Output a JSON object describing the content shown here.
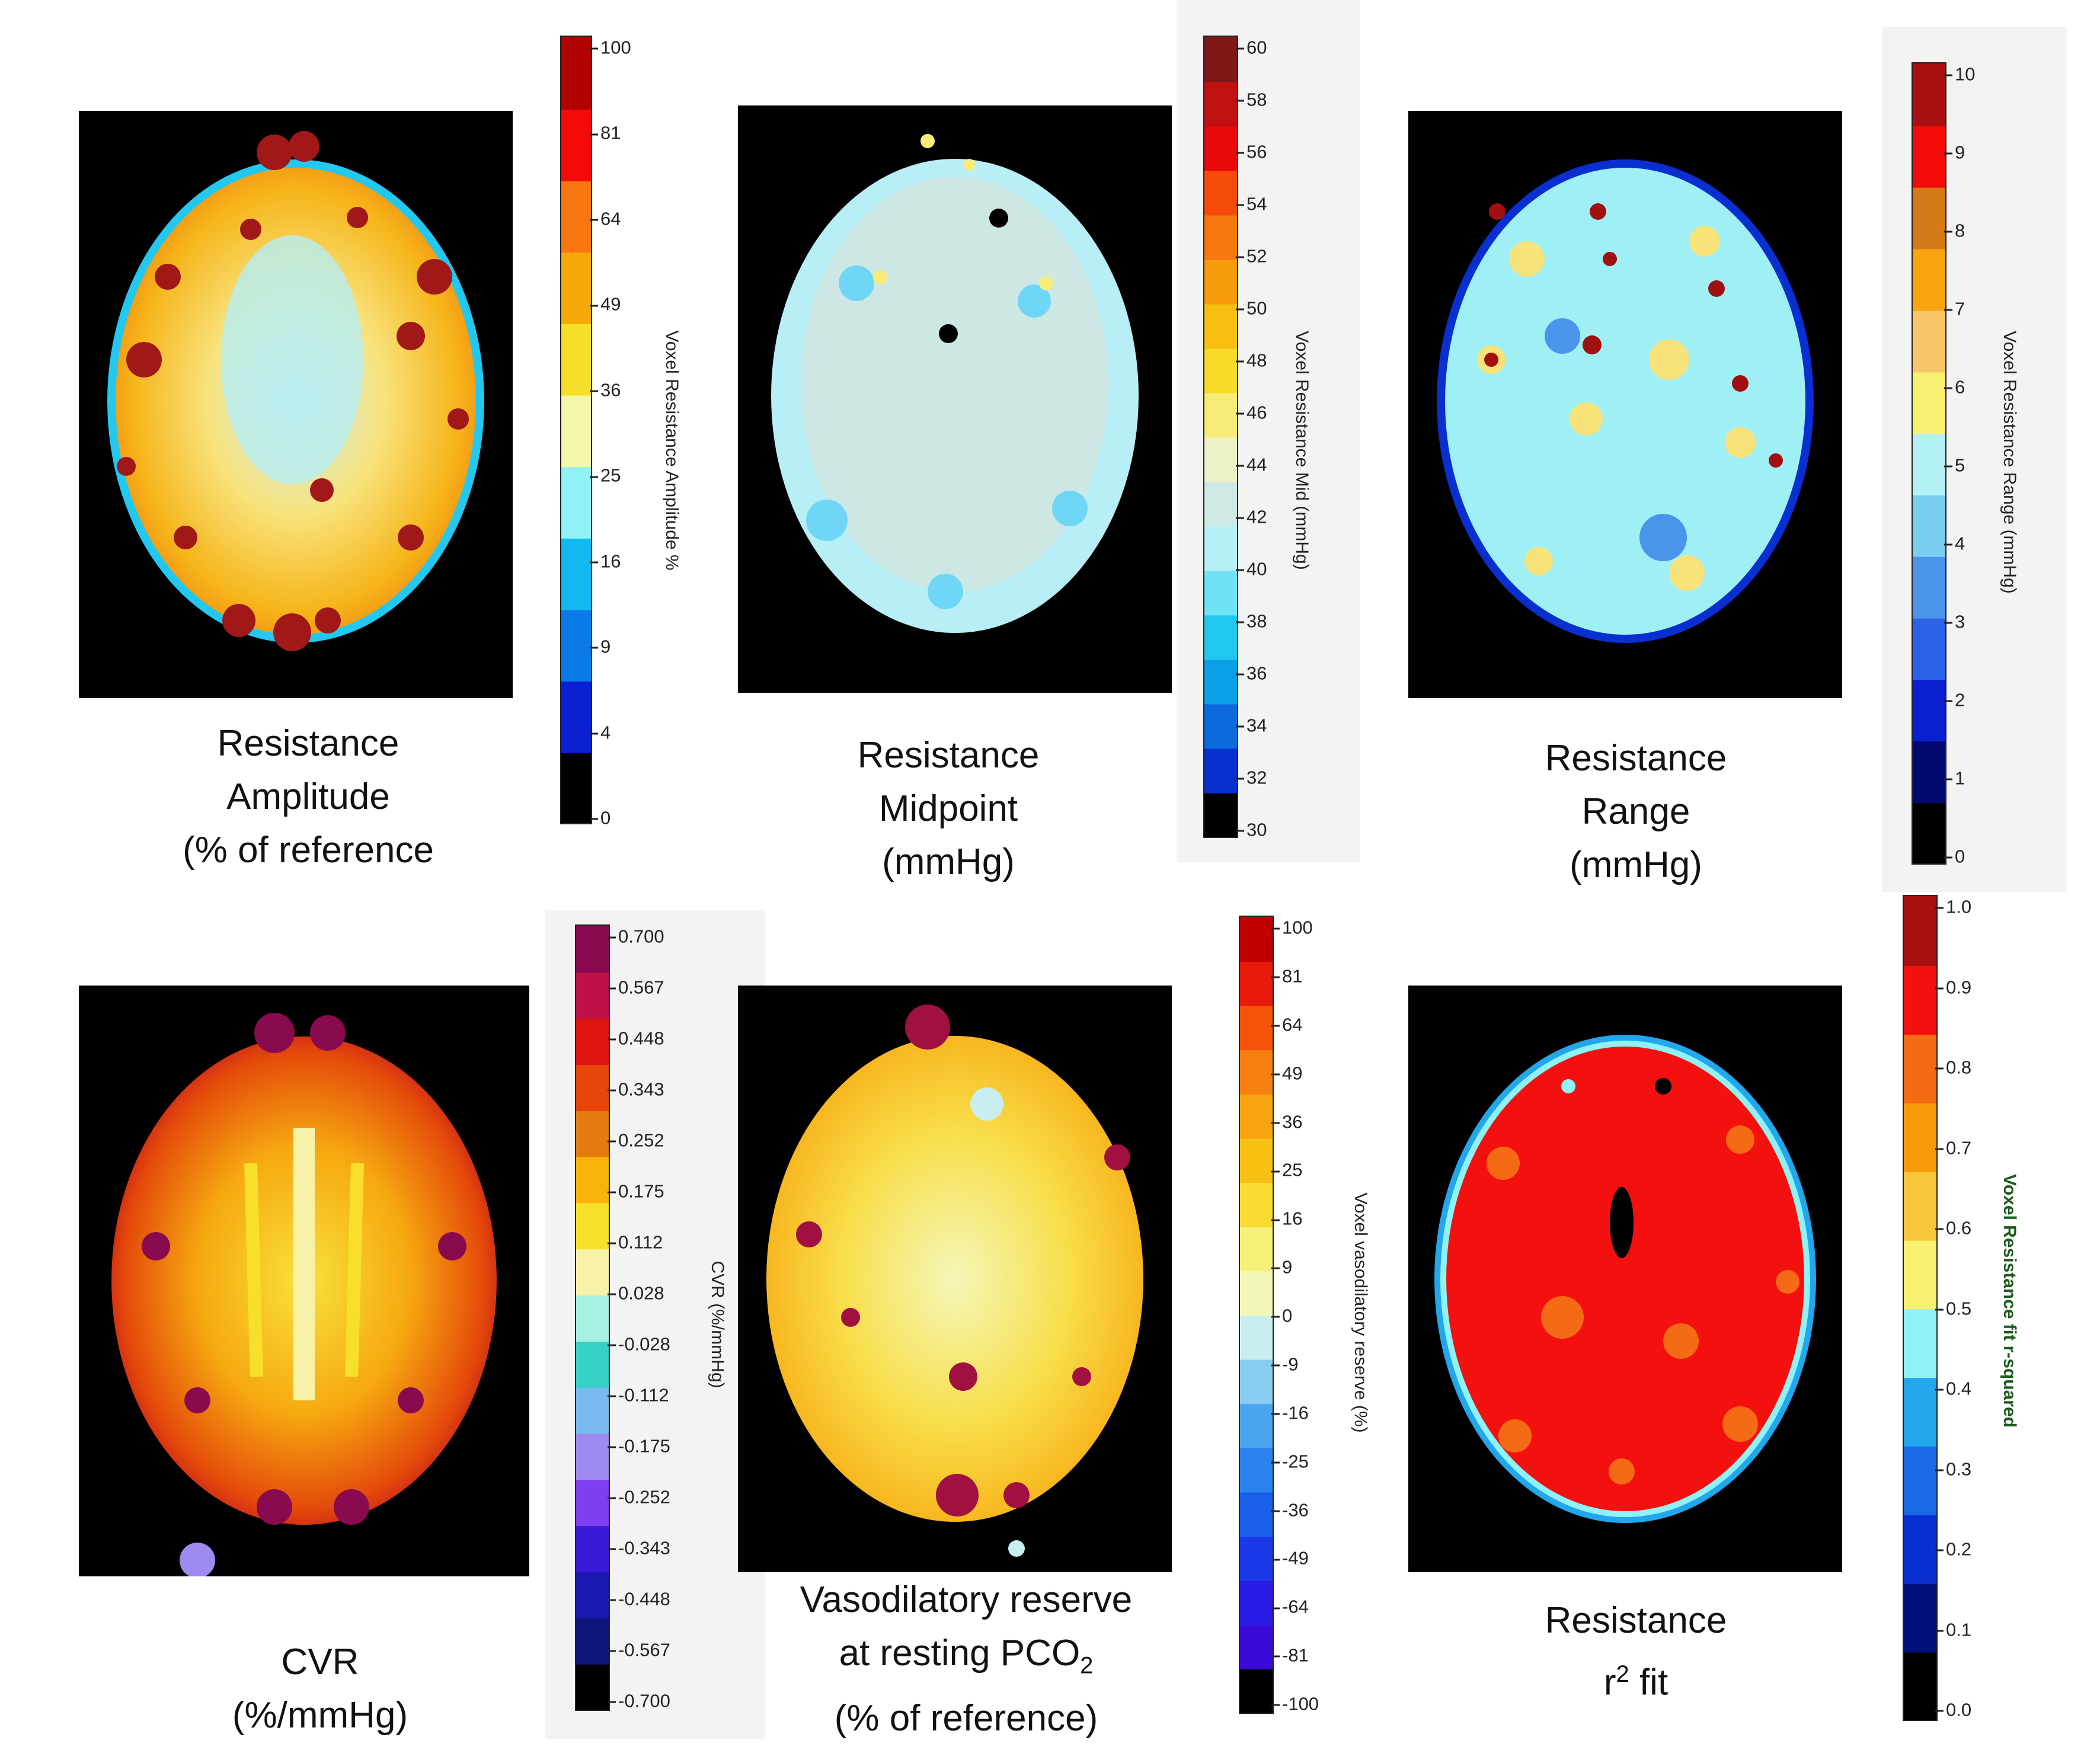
{
  "panels": [
    {
      "id": "amplitude",
      "caption": [
        "Resistance",
        "Amplitude",
        "(% of reference"
      ],
      "colorbar_label": "Voxel Resistance Amplitude %",
      "ticks": [
        "100",
        "81",
        "64",
        "49",
        "36",
        "25",
        "16",
        "9",
        "4",
        "0"
      ],
      "colors": [
        "#000000",
        "#0a1fd0",
        "#0a7ae6",
        "#12b8f0",
        "#8ff2f5",
        "#f4f7a8",
        "#f6df28",
        "#f8a90a",
        "#f77610",
        "#f50a0a",
        "#b00000"
      ]
    },
    {
      "id": "midpoint",
      "caption": [
        "Resistance",
        "Midpoint",
        "(mmHg)"
      ],
      "colorbar_label": "Voxel Resistance Mid (mmHg)",
      "ticks": [
        "60",
        "58",
        "56",
        "54",
        "52",
        "50",
        "48",
        "46",
        "44",
        "42",
        "40",
        "38",
        "36",
        "34",
        "32",
        "30"
      ],
      "colors": [
        "#000000",
        "#0a2fcf",
        "#0a69dc",
        "#0a9fe6",
        "#20c8f0",
        "#70e2f5",
        "#b4f0f5",
        "#cfe9e6",
        "#ecf1c6",
        "#f8ec78",
        "#f8da28",
        "#f8bf10",
        "#f89b0a",
        "#f7770f",
        "#f54a0a",
        "#e80a0a",
        "#c01010",
        "#801818"
      ]
    },
    {
      "id": "range",
      "caption": [
        "Resistance",
        "Range",
        "(mmHg)"
      ],
      "colorbar_label": "Voxel Resistance Range (mmHg)",
      "ticks": [
        "10",
        "9",
        "8",
        "7",
        "6",
        "5",
        "4",
        "3",
        "2",
        "1",
        "0"
      ],
      "colors": [
        "#000000",
        "#000a70",
        "#0a1fd0",
        "#2a62e8",
        "#4a94ea",
        "#78cff0",
        "#b2f1f6",
        "#f8f070",
        "#f9c66a",
        "#f8a510",
        "#d47a18",
        "#f50a0a",
        "#a81010"
      ]
    },
    {
      "id": "cvr",
      "caption": [
        "CVR",
        "(%/mmHg)"
      ],
      "colorbar_label": "CVR (%/mmHg)",
      "ticks": [
        "0.700",
        "0.567",
        "0.448",
        "0.343",
        "0.252",
        "0.175",
        "0.112",
        "0.028",
        "-0.028",
        "-0.112",
        "-0.175",
        "-0.252",
        "-0.343",
        "-0.448",
        "-0.567",
        "-0.700"
      ],
      "colors": [
        "#000000",
        "#10157a",
        "#1a1ab0",
        "#3a1ad8",
        "#7e3ff0",
        "#9f8af0",
        "#7ab8f0",
        "#36d2c8",
        "#a8f0e0",
        "#f8f2a8",
        "#f8e02a",
        "#f8b40a",
        "#e47a10",
        "#e7460a",
        "#e11414",
        "#c01048",
        "#8a0a50"
      ]
    },
    {
      "id": "vasodilatory",
      "caption": [
        "Vasodilatory reserve",
        "at resting PCO",
        "(% of reference)"
      ],
      "caption_sub": "2",
      "colorbar_label": "Voxel vasodilatory reserve (%)",
      "ticks": [
        "100",
        "81",
        "64",
        "49",
        "36",
        "25",
        "16",
        "9",
        "0",
        "-9",
        "-16",
        "-25",
        "-36",
        "-49",
        "-64",
        "-81",
        "-100"
      ],
      "colors": [
        "#000000",
        "#3b0ad8",
        "#2a1ae6",
        "#1a3ae8",
        "#1a5fea",
        "#2a82ec",
        "#4aa4ef",
        "#88ccf2",
        "#c8eef0",
        "#f2f7b8",
        "#f6ef78",
        "#f8dc32",
        "#f8c012",
        "#f8a410",
        "#f77e10",
        "#f5530a",
        "#e81a0a",
        "#c00000"
      ]
    },
    {
      "id": "r2",
      "caption": [
        "Resistance",
        "r",
        " fit"
      ],
      "caption_sup": "2",
      "colorbar_label": "Voxel Resistance fit r-squared",
      "ticks": [
        "1.0",
        "0.9",
        "0.8",
        "0.7",
        "0.6",
        "0.5",
        "0.4",
        "0.3",
        "0.2",
        "0.1",
        "0.0"
      ],
      "colors": [
        "#000000",
        "#00107a",
        "#0a2fd0",
        "#1a6ae8",
        "#22a6ec",
        "#8ff2f5",
        "#f8f070",
        "#f8c63a",
        "#f89a0a",
        "#f56a14",
        "#f51010",
        "#a81010"
      ]
    }
  ]
}
